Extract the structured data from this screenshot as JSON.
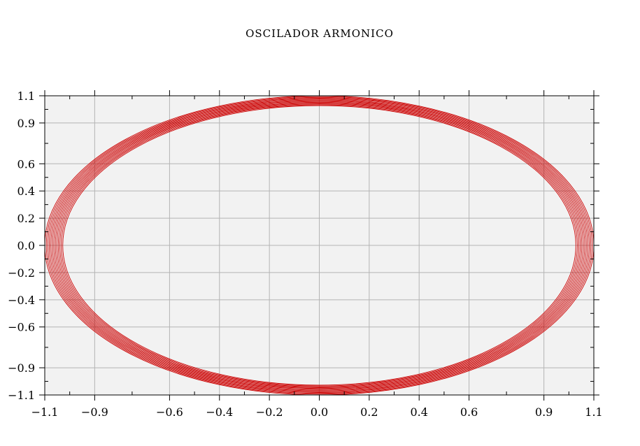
{
  "chart_data": {
    "type": "line",
    "title": "OSCILADOR ARMONICO",
    "xlabel": "",
    "ylabel": "",
    "xlim": [
      -1.1,
      1.1
    ],
    "ylim": [
      -1.1,
      1.1
    ],
    "grid": true,
    "x_ticks": [
      -1.1,
      -0.9,
      -0.6,
      -0.4,
      -0.2,
      0.0,
      0.2,
      0.4,
      0.6,
      0.9,
      1.1
    ],
    "y_ticks": [
      -1.1,
      -0.9,
      -0.6,
      -0.4,
      -0.2,
      0.0,
      0.2,
      0.4,
      0.6,
      0.9,
      1.1
    ],
    "x_tick_labels": [
      "−1.1",
      "−0.9",
      "−0.6",
      "−0.4",
      "−0.2",
      "0.0",
      "0.2",
      "0.4",
      "0.6",
      "0.9",
      "1.1"
    ],
    "y_tick_labels": [
      "−1.1",
      "−0.9",
      "−0.6",
      "−0.4",
      "−0.2",
      "0.0",
      "0.2",
      "0.4",
      "0.6",
      "0.9",
      "1.1"
    ],
    "series": [
      {
        "kind": "phase-space ellipse band",
        "color": "#cc0000",
        "orbits": [
          {
            "x_amplitude": 1.1,
            "y_amplitude": 1.1
          },
          {
            "x_amplitude": 1.094,
            "y_amplitude": 1.094
          },
          {
            "x_amplitude": 1.088,
            "y_amplitude": 1.088
          },
          {
            "x_amplitude": 1.082,
            "y_amplitude": 1.082
          },
          {
            "x_amplitude": 1.076,
            "y_amplitude": 1.076
          },
          {
            "x_amplitude": 1.07,
            "y_amplitude": 1.07
          },
          {
            "x_amplitude": 1.064,
            "y_amplitude": 1.064
          },
          {
            "x_amplitude": 1.058,
            "y_amplitude": 1.058
          },
          {
            "x_amplitude": 1.052,
            "y_amplitude": 1.052
          },
          {
            "x_amplitude": 1.046,
            "y_amplitude": 1.046
          },
          {
            "x_amplitude": 1.04,
            "y_amplitude": 1.04
          },
          {
            "x_amplitude": 1.034,
            "y_amplitude": 1.034
          },
          {
            "x_amplitude": 1.028,
            "y_amplitude": 1.028
          }
        ]
      }
    ],
    "colors": {
      "plot_background": "#f2f2f2",
      "grid": "#b4b4b4",
      "axes": "#000000",
      "curve": "#cc0000"
    }
  }
}
